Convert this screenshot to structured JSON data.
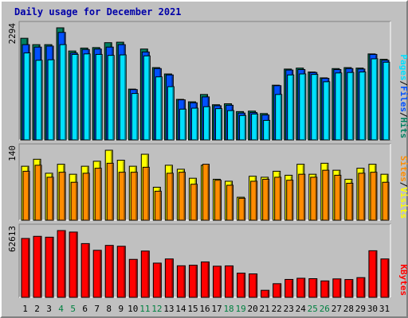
{
  "title": "Daily usage for December 2021",
  "colors": {
    "background": "#c0c0c0",
    "title": "#0000a8",
    "pages": "#00e0ff",
    "files": "#0050ff",
    "hits": "#008060",
    "visits": "#ffff00",
    "sites": "#ff8c00",
    "kbytes": "#ff0000",
    "weekend_label": "#008040",
    "weekday_label": "#000000"
  },
  "chart_data": [
    {
      "type": "bar",
      "name": "hits-files-pages",
      "ymax_label": "2294",
      "ylim": [
        0,
        2294
      ],
      "legend": [
        {
          "text": "Pages",
          "color": "#00e0ff"
        },
        {
          "text": "/",
          "color": "#000000"
        },
        {
          "text": "Files",
          "color": "#0050ff"
        },
        {
          "text": "/",
          "color": "#000000"
        },
        {
          "text": "Hits",
          "color": "#008060"
        }
      ],
      "categories": [
        "1",
        "2",
        "3",
        "4",
        "5",
        "6",
        "7",
        "8",
        "9",
        "10",
        "11",
        "12",
        "13",
        "14",
        "15",
        "16",
        "17",
        "18",
        "19",
        "20",
        "21",
        "22",
        "23",
        "24",
        "25",
        "26",
        "27",
        "28",
        "29",
        "30",
        "31"
      ],
      "weekend": [
        4,
        5,
        11,
        12,
        18,
        19,
        25,
        26
      ],
      "series": [
        {
          "name": "Hits",
          "values": [
            2080,
            1950,
            1950,
            2294,
            1820,
            1880,
            1890,
            1990,
            2000,
            1040,
            1860,
            1480,
            1350,
            830,
            780,
            930,
            720,
            740,
            580,
            590,
            540,
            1120,
            1450,
            1470,
            1390,
            1270,
            1460,
            1480,
            1470,
            1760,
            1650
          ]
        },
        {
          "name": "Files",
          "values": [
            1950,
            1900,
            1920,
            2200,
            1780,
            1850,
            1860,
            1900,
            1950,
            1030,
            1800,
            1460,
            1330,
            820,
            760,
            880,
            700,
            710,
            550,
            560,
            510,
            1110,
            1430,
            1440,
            1380,
            1260,
            1440,
            1460,
            1450,
            1750,
            1630
          ]
        },
        {
          "name": "Pages",
          "values": [
            1780,
            1630,
            1640,
            1950,
            1750,
            1760,
            1750,
            1730,
            1740,
            950,
            1720,
            1290,
            1090,
            630,
            650,
            680,
            640,
            600,
            500,
            530,
            400,
            930,
            1330,
            1350,
            1340,
            1190,
            1370,
            1380,
            1390,
            1660,
            1590
          ]
        }
      ]
    },
    {
      "type": "bar",
      "name": "visits-sites",
      "ymax_label": "140",
      "ylim": [
        0,
        140
      ],
      "legend": [
        {
          "text": "Sites",
          "color": "#ff8c00"
        },
        {
          "text": "/",
          "color": "#000000"
        },
        {
          "text": "Visits",
          "color": "#ffff00"
        }
      ],
      "categories": [
        "1",
        "2",
        "3",
        "4",
        "5",
        "6",
        "7",
        "8",
        "9",
        "10",
        "11",
        "12",
        "13",
        "14",
        "15",
        "16",
        "17",
        "18",
        "19",
        "20",
        "21",
        "22",
        "23",
        "24",
        "25",
        "26",
        "27",
        "28",
        "29",
        "30",
        "31"
      ],
      "weekend": [
        4,
        5,
        11,
        12,
        18,
        19,
        25,
        26
      ],
      "series": [
        {
          "name": "Visits",
          "values": [
            108,
            122,
            94,
            112,
            92,
            108,
            118,
            140,
            120,
            108,
            132,
            66,
            110,
            102,
            84,
            110,
            82,
            78,
            46,
            88,
            86,
            98,
            90,
            112,
            92,
            114,
            100,
            82,
            104,
            112,
            92
          ]
        },
        {
          "name": "Sites",
          "values": [
            98,
            110,
            86,
            96,
            76,
            94,
            104,
            114,
            96,
            96,
            106,
            58,
            94,
            96,
            72,
            112,
            80,
            70,
            44,
            78,
            82,
            86,
            80,
            92,
            86,
            100,
            90,
            74,
            94,
            96,
            76
          ]
        }
      ]
    },
    {
      "type": "bar",
      "name": "kbytes",
      "ymax_label": "62613",
      "ylim": [
        0,
        62613
      ],
      "legend": [
        {
          "text": "KBytes",
          "color": "#ff0000"
        }
      ],
      "categories": [
        "1",
        "2",
        "3",
        "4",
        "5",
        "6",
        "7",
        "8",
        "9",
        "10",
        "11",
        "12",
        "13",
        "14",
        "15",
        "16",
        "17",
        "18",
        "19",
        "20",
        "21",
        "22",
        "23",
        "24",
        "25",
        "26",
        "27",
        "28",
        "29",
        "30",
        "31"
      ],
      "weekend": [
        4,
        5,
        11,
        12,
        18,
        19,
        25,
        26
      ],
      "series": [
        {
          "name": "KBytes",
          "values": [
            55200,
            57200,
            56400,
            62613,
            61200,
            50400,
            44100,
            48700,
            47900,
            35600,
            43400,
            32100,
            36000,
            29600,
            30100,
            33200,
            29200,
            29500,
            22700,
            22000,
            6600,
            12800,
            16800,
            17900,
            17500,
            15400,
            17300,
            16700,
            18500,
            43700,
            36000
          ]
        }
      ]
    }
  ]
}
